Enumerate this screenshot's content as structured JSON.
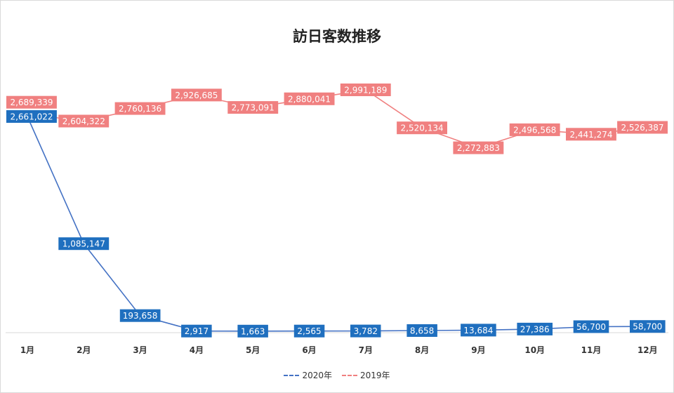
{
  "chart_data": {
    "type": "line",
    "title": "訪日客数推移",
    "categories": [
      "1月",
      "2月",
      "3月",
      "4月",
      "5月",
      "6月",
      "7月",
      "8月",
      "9月",
      "10月",
      "11月",
      "12月"
    ],
    "series": [
      {
        "name": "2020年",
        "color": "#4472c4",
        "label_color": "#1f6fbf",
        "values": [
          2661022,
          1085147,
          193658,
          2917,
          1663,
          2565,
          3782,
          8658,
          13684,
          27386,
          56700,
          58700
        ],
        "labels": [
          "2,661,022",
          "1,085,147",
          "193,658",
          "2,917",
          "1,663",
          "2,565",
          "3,782",
          "8,658",
          "13,684",
          "27,386",
          "56,700",
          "58,700"
        ]
      },
      {
        "name": "2019年",
        "color": "#f08080",
        "label_color": "#f08080",
        "values": [
          2689339,
          2604322,
          2760136,
          2926685,
          2773091,
          2880041,
          2991189,
          2520134,
          2272883,
          2496568,
          2441274,
          2526387
        ],
        "labels": [
          "2,689,339",
          "2,604,322",
          "2,760,136",
          "2,926,685",
          "2,773,091",
          "2,880,041",
          "2,991,189",
          "2,520,134",
          "2,272,883",
          "2,496,568",
          "2,441,274",
          "2,526,387"
        ]
      }
    ],
    "ylim": [
      0,
      3200000
    ],
    "grid": false,
    "legend_position": "bottom"
  }
}
